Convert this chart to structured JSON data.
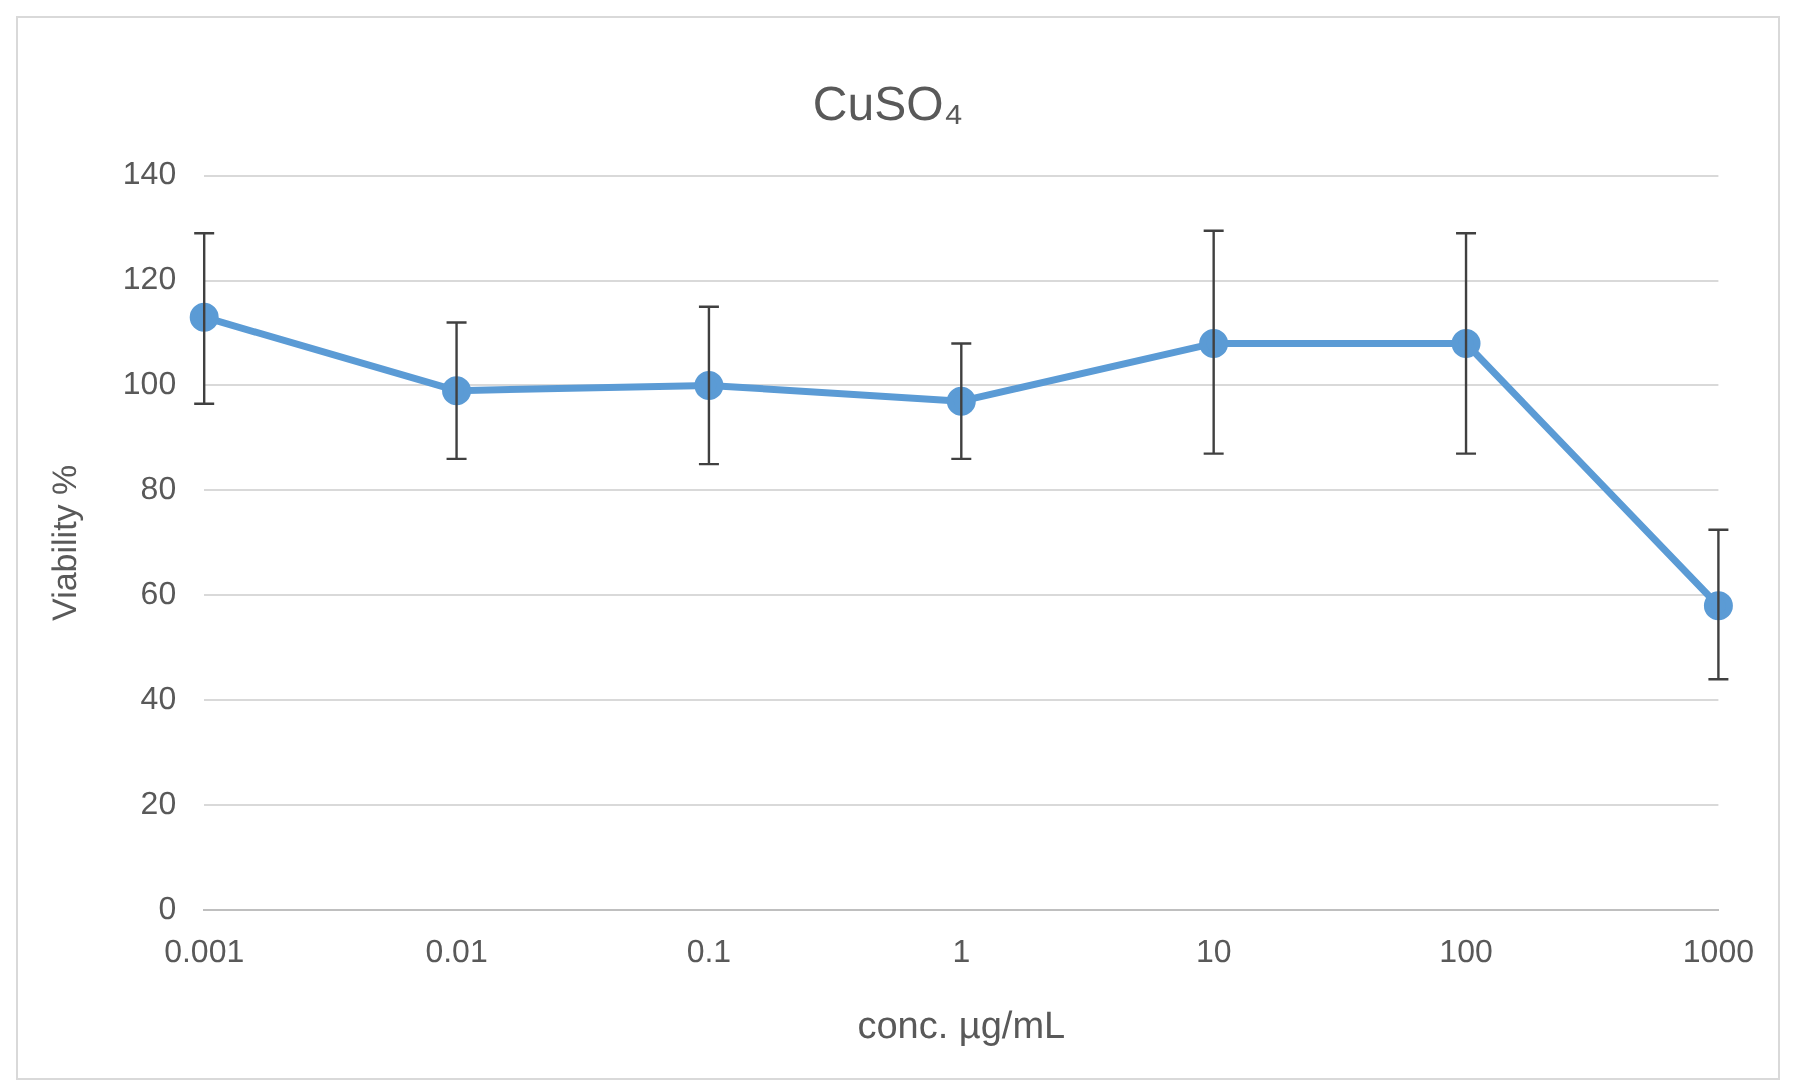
{
  "chart_data": {
    "type": "line",
    "title": "CuSO₄",
    "xlabel": "conc. µg/mL",
    "ylabel": "Viability %",
    "categories": [
      "0.001",
      "0.01",
      "0.1",
      "1",
      "10",
      "100",
      "1000"
    ],
    "series": [
      {
        "color": "#5b9bd5",
        "values": [
          113,
          99,
          100,
          97,
          108,
          108,
          58
        ],
        "errors": [
          [
            96.5,
            129
          ],
          [
            86,
            112
          ],
          [
            85,
            115
          ],
          [
            86,
            108
          ],
          [
            87,
            129.5
          ],
          [
            87,
            129
          ],
          [
            44,
            72.5
          ]
        ]
      }
    ],
    "ylim": [
      0,
      140
    ],
    "yticks": [
      0,
      20,
      40,
      60,
      80,
      100,
      120,
      140
    ],
    "grid": "y",
    "legend": false,
    "marker": "circle",
    "line_style": "solid"
  }
}
